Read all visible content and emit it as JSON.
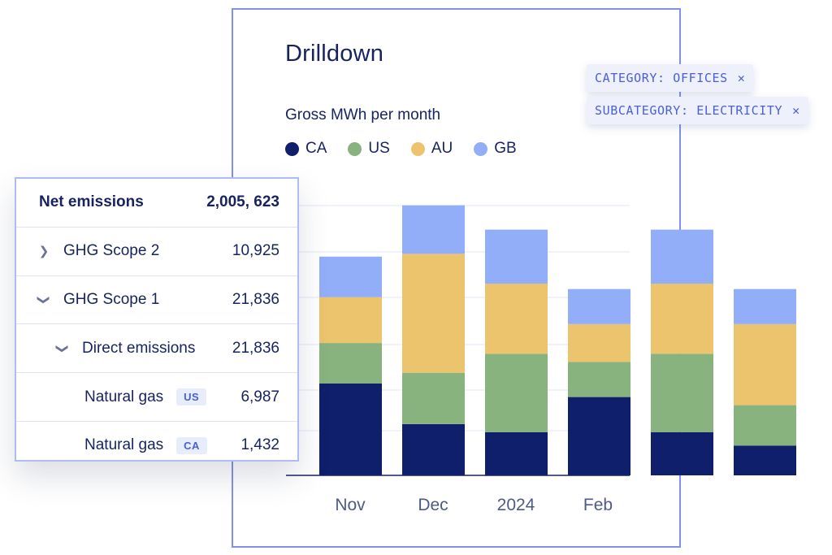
{
  "drilldown": {
    "title": "Drilldown",
    "subtitle": "Gross MWh per month"
  },
  "filters": [
    {
      "label": "CATEGORY: OFFICES"
    },
    {
      "label": "SUBCATEGORY: ELECTRICITY"
    }
  ],
  "chart_data": {
    "type": "bar",
    "stacked": true,
    "title": "Drilldown",
    "subtitle": "Gross MWh per month",
    "categories": [
      "Nov",
      "Dec",
      "2024",
      "Feb",
      "",
      ""
    ],
    "x_tick_labels": [
      "Nov",
      "Dec",
      "2024",
      "Feb"
    ],
    "series": [
      {
        "name": "CA",
        "color": "#0f1f6b",
        "values": [
          34,
          19,
          16,
          29,
          16,
          11
        ]
      },
      {
        "name": "US",
        "color": "#88b37e",
        "values": [
          15,
          19,
          29,
          13,
          29,
          15
        ]
      },
      {
        "name": "AU",
        "color": "#ecc46e",
        "values": [
          17,
          44,
          26,
          14,
          26,
          30
        ]
      },
      {
        "name": "GB",
        "color": "#93aef8",
        "values": [
          15,
          18,
          20,
          13,
          20,
          13
        ]
      }
    ],
    "ylim": [
      0,
      102
    ],
    "grid": true,
    "legend_position": "top-left"
  },
  "table": {
    "header": {
      "label": "Net emissions",
      "value": "2,005, 623"
    },
    "rows": [
      {
        "label": "GHG Scope 2",
        "value": "10,925",
        "chevron": "chevron-right-icon"
      },
      {
        "label": "GHG Scope 1",
        "value": "21,836",
        "chevron": "chevron-down-icon"
      },
      {
        "label": "Direct emissions",
        "value": "21,836",
        "chevron": "chevron-down-icon"
      },
      {
        "label": "Natural gas",
        "badge": "US",
        "value": "6,987"
      },
      {
        "label": "Natural gas",
        "badge": "CA",
        "value": "1,432"
      }
    ]
  }
}
